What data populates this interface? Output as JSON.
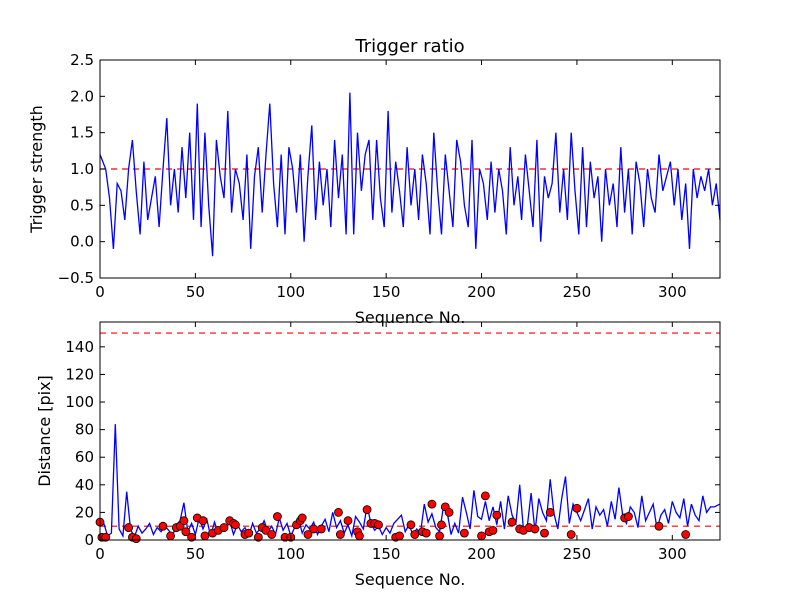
{
  "chart_data": [
    {
      "type": "line",
      "title": "Trigger ratio",
      "xlabel": "Sequence No.",
      "ylabel": "Trigger strength",
      "xlim": [
        0,
        325
      ],
      "ylim": [
        -0.5,
        2.5
      ],
      "xticks": [
        0,
        50,
        100,
        150,
        200,
        250,
        300
      ],
      "yticks": [
        -0.5,
        0.0,
        0.5,
        1.0,
        1.5,
        2.0,
        2.5
      ],
      "ytick_labels": [
        "−0.5",
        "0.0",
        "0.5",
        "1.0",
        "1.5",
        "2.0",
        "2.5"
      ],
      "threshold": {
        "y": 1.0,
        "color": "#ff0000",
        "style": "dashed"
      },
      "series": [
        {
          "color": "#0000ff",
          "x": [
            0,
            3,
            5,
            7,
            9,
            11,
            13,
            15,
            17,
            19,
            21,
            23,
            25,
            27,
            29,
            31,
            33,
            35,
            37,
            39,
            41,
            43,
            45,
            47,
            49,
            51,
            53,
            55,
            57,
            59,
            61,
            63,
            65,
            67,
            69,
            71,
            73,
            75,
            77,
            79,
            81,
            83,
            85,
            87,
            89,
            91,
            93,
            95,
            97,
            99,
            101,
            103,
            105,
            107,
            109,
            111,
            113,
            115,
            117,
            119,
            121,
            123,
            125,
            127,
            129,
            131,
            133,
            135,
            137,
            139,
            141,
            143,
            145,
            147,
            149,
            151,
            153,
            155,
            157,
            159,
            161,
            163,
            165,
            167,
            169,
            171,
            173,
            175,
            177,
            179,
            181,
            183,
            185,
            187,
            189,
            191,
            193,
            195,
            197,
            199,
            201,
            203,
            205,
            207,
            209,
            211,
            213,
            215,
            217,
            219,
            221,
            223,
            225,
            227,
            229,
            231,
            233,
            235,
            237,
            239,
            241,
            243,
            245,
            247,
            249,
            251,
            253,
            255,
            257,
            259,
            261,
            263,
            265,
            267,
            269,
            271,
            273,
            275,
            277,
            279,
            281,
            283,
            285,
            287,
            289,
            291,
            293,
            295,
            297,
            299,
            301,
            303,
            305,
            307,
            309,
            311,
            313,
            315,
            317,
            319,
            321,
            323,
            325
          ],
          "y": [
            1.2,
            1.0,
            0.6,
            -0.1,
            0.8,
            0.7,
            0.3,
            1.0,
            1.4,
            0.7,
            0.1,
            1.1,
            0.3,
            0.6,
            0.9,
            0.2,
            1.0,
            1.7,
            0.5,
            1.0,
            0.4,
            1.3,
            0.6,
            1.5,
            0.3,
            1.9,
            0.2,
            1.5,
            0.5,
            -0.2,
            1.4,
            0.9,
            0.6,
            1.8,
            0.4,
            1.0,
            0.8,
            0.3,
            1.2,
            -0.1,
            0.9,
            1.3,
            0.4,
            1.2,
            1.9,
            0.8,
            0.2,
            1.2,
            0.1,
            1.3,
            1.0,
            0.4,
            1.2,
            0.0,
            0.9,
            1.6,
            0.3,
            1.1,
            0.5,
            1.0,
            0.2,
            1.4,
            0.6,
            1.2,
            0.1,
            2.05,
            0.1,
            1.5,
            0.7,
            1.2,
            1.4,
            0.3,
            1.4,
            0.6,
            0.2,
            1.8,
            0.4,
            1.1,
            0.7,
            0.2,
            1.3,
            0.5,
            1.0,
            0.3,
            1.2,
            0.8,
            0.1,
            1.5,
            0.7,
            0.1,
            1.2,
            0.7,
            0.2,
            1.4,
            1.1,
            0.5,
            0.2,
            1.4,
            -0.1,
            1.0,
            0.8,
            0.3,
            1.1,
            0.4,
            1.0,
            0.7,
            0.1,
            1.3,
            0.5,
            0.9,
            0.3,
            1.2,
            0.7,
            0.2,
            1.4,
            0.0,
            0.9,
            0.6,
            0.8,
            1.5,
            0.4,
            1.0,
            0.3,
            1.5,
            0.7,
            0.1,
            1.3,
            0.2,
            1.1,
            0.6,
            0.9,
            0.0,
            1.0,
            0.5,
            0.8,
            0.2,
            1.3,
            0.4,
            1.0,
            0.1,
            1.1,
            0.8,
            0.2,
            1.0,
            0.6,
            0.4,
            1.2,
            0.7,
            0.9,
            1.1,
            0.5,
            1.0,
            0.3,
            0.8,
            -0.1,
            1.0,
            0.6,
            0.9,
            0.7,
            1.0,
            0.5,
            0.8,
            0.3
          ]
        }
      ]
    },
    {
      "type": "line",
      "title": "",
      "xlabel": "Sequence No.",
      "ylabel": "Distance [pix]",
      "xlim": [
        0,
        325
      ],
      "ylim": [
        0,
        158
      ],
      "xticks": [
        0,
        50,
        100,
        150,
        200,
        250,
        300
      ],
      "yticks": [
        0,
        20,
        40,
        60,
        80,
        100,
        120,
        140
      ],
      "thresholds": [
        {
          "y": 150,
          "color": "#ff0000",
          "style": "dashed"
        },
        {
          "y": 10,
          "color": "#ff0000",
          "style": "dashed"
        }
      ],
      "series": [
        {
          "color": "#0000ff",
          "x": [
            0,
            2,
            4,
            6,
            8,
            10,
            12,
            14,
            16,
            18,
            20,
            22,
            24,
            26,
            28,
            30,
            32,
            34,
            36,
            38,
            40,
            42,
            44,
            46,
            48,
            50,
            52,
            54,
            56,
            58,
            60,
            62,
            64,
            66,
            68,
            70,
            72,
            74,
            76,
            78,
            80,
            82,
            84,
            86,
            88,
            90,
            92,
            94,
            96,
            98,
            100,
            102,
            104,
            106,
            108,
            110,
            112,
            114,
            116,
            118,
            120,
            122,
            124,
            126,
            128,
            130,
            132,
            134,
            136,
            138,
            140,
            142,
            144,
            146,
            148,
            150,
            152,
            154,
            156,
            158,
            160,
            162,
            164,
            166,
            168,
            170,
            172,
            174,
            176,
            178,
            180,
            182,
            184,
            186,
            188,
            190,
            192,
            194,
            196,
            198,
            200,
            202,
            204,
            206,
            208,
            210,
            212,
            214,
            216,
            218,
            220,
            222,
            224,
            226,
            228,
            230,
            232,
            234,
            236,
            238,
            240,
            242,
            244,
            246,
            248,
            250,
            252,
            254,
            256,
            258,
            260,
            262,
            264,
            266,
            268,
            270,
            272,
            274,
            276,
            278,
            280,
            282,
            284,
            286,
            288,
            290,
            292,
            294,
            296,
            298,
            300,
            302,
            304,
            306,
            308,
            310,
            312,
            314,
            316,
            318,
            320,
            322,
            325
          ],
          "y": [
            10,
            12,
            3,
            5,
            84,
            8,
            3,
            35,
            8,
            2,
            10,
            5,
            8,
            12,
            4,
            9,
            6,
            10,
            7,
            3,
            11,
            14,
            27,
            6,
            12,
            4,
            16,
            8,
            15,
            3,
            13,
            5,
            9,
            7,
            14,
            4,
            11,
            6,
            9,
            3,
            12,
            5,
            8,
            14,
            6,
            10,
            4,
            16,
            7,
            12,
            3,
            9,
            16,
            5,
            11,
            8,
            13,
            4,
            10,
            15,
            6,
            20,
            9,
            14,
            5,
            11,
            3,
            17,
            13,
            8,
            25,
            12,
            7,
            10,
            4,
            9,
            5,
            12,
            15,
            18,
            6,
            11,
            4,
            8,
            5,
            26,
            13,
            19,
            9,
            6,
            24,
            20,
            4,
            12,
            5,
            31,
            20,
            8,
            36,
            17,
            15,
            28,
            14,
            24,
            11,
            28,
            8,
            32,
            18,
            12,
            40,
            7,
            10,
            34,
            6,
            30,
            20,
            14,
            44,
            19,
            8,
            30,
            46,
            12,
            26,
            20,
            14,
            22,
            30,
            8,
            24,
            18,
            22,
            10,
            28,
            15,
            38,
            18,
            12,
            24,
            20,
            9,
            32,
            14,
            20,
            26,
            8,
            18,
            22,
            12,
            28,
            20,
            16,
            30,
            10,
            26,
            18,
            14,
            32,
            20,
            24,
            24,
            26
          ]
        }
      ],
      "markers": {
        "color": "#ff0000",
        "x": [
          0,
          1,
          3,
          15,
          17,
          19,
          33,
          37,
          40,
          42,
          44,
          45,
          48,
          51,
          54,
          55,
          59,
          62,
          65,
          68,
          70,
          71,
          76,
          78,
          83,
          85,
          87,
          90,
          93,
          97,
          100,
          103,
          105,
          106,
          109,
          112,
          116,
          125,
          126,
          130,
          135,
          136,
          140,
          142,
          144,
          146,
          155,
          157,
          163,
          165,
          169,
          171,
          174,
          178,
          179,
          181,
          183,
          191,
          200,
          202,
          204,
          206,
          208,
          216,
          220,
          222,
          225,
          228,
          233,
          236,
          247,
          250,
          275,
          277,
          293,
          307
        ],
        "y": [
          13,
          2,
          2,
          9,
          2,
          1,
          10,
          3,
          9,
          10,
          14,
          6,
          2,
          16,
          14,
          3,
          5,
          7,
          9,
          14,
          12,
          11,
          4,
          5,
          2,
          9,
          7,
          4,
          17,
          2,
          2,
          11,
          14,
          16,
          4,
          8,
          8,
          20,
          4,
          14,
          6,
          3,
          22,
          12,
          12,
          11,
          2,
          3,
          11,
          4,
          6,
          5,
          26,
          3,
          11,
          24,
          20,
          5,
          3,
          32,
          6,
          7,
          18,
          13,
          8,
          7,
          9,
          8,
          5,
          20,
          4,
          23,
          16,
          17,
          10,
          4
        ]
      }
    }
  ]
}
